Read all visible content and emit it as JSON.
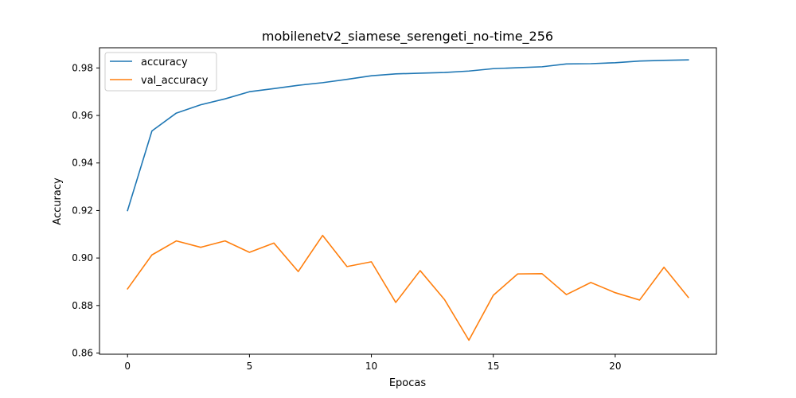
{
  "chart_data": {
    "type": "line",
    "title": "mobilenetv2_siamese_serengeti_no-time_256",
    "xlabel": "Epocas",
    "ylabel": "Accuracy",
    "xlim": [
      -1.15,
      24.15
    ],
    "ylim": [
      0.8595,
      0.9885
    ],
    "xticks": [
      0,
      5,
      10,
      15,
      20
    ],
    "xtick_labels": [
      "0",
      "5",
      "10",
      "15",
      "20"
    ],
    "yticks": [
      0.86,
      0.88,
      0.9,
      0.92,
      0.94,
      0.96,
      0.98
    ],
    "ytick_labels": [
      "0.86",
      "0.88",
      "0.90",
      "0.92",
      "0.94",
      "0.96",
      "0.98"
    ],
    "grid": false,
    "legend_position": "top-left",
    "x": [
      0,
      1,
      2,
      3,
      4,
      5,
      6,
      7,
      8,
      9,
      10,
      11,
      12,
      13,
      14,
      15,
      16,
      17,
      18,
      19,
      20,
      21,
      22,
      23
    ],
    "series": [
      {
        "name": "accuracy",
        "color": "#1f77b4",
        "values": [
          0.92,
          0.9535,
          0.961,
          0.9645,
          0.967,
          0.97,
          0.9713,
          0.9727,
          0.9738,
          0.9752,
          0.9767,
          0.9775,
          0.9778,
          0.9781,
          0.9787,
          0.9797,
          0.9801,
          0.9805,
          0.9817,
          0.9818,
          0.9822,
          0.9829,
          0.9832,
          0.9834
        ]
      },
      {
        "name": "val_accuracy",
        "color": "#ff7f0e",
        "values": [
          0.887,
          0.9013,
          0.9072,
          0.9045,
          0.9072,
          0.9024,
          0.9063,
          0.8943,
          0.9095,
          0.8964,
          0.8984,
          0.8813,
          0.8947,
          0.8825,
          0.8654,
          0.8843,
          0.8933,
          0.8934,
          0.8846,
          0.8897,
          0.8854,
          0.8823,
          0.8961,
          0.8834
        ]
      }
    ]
  }
}
